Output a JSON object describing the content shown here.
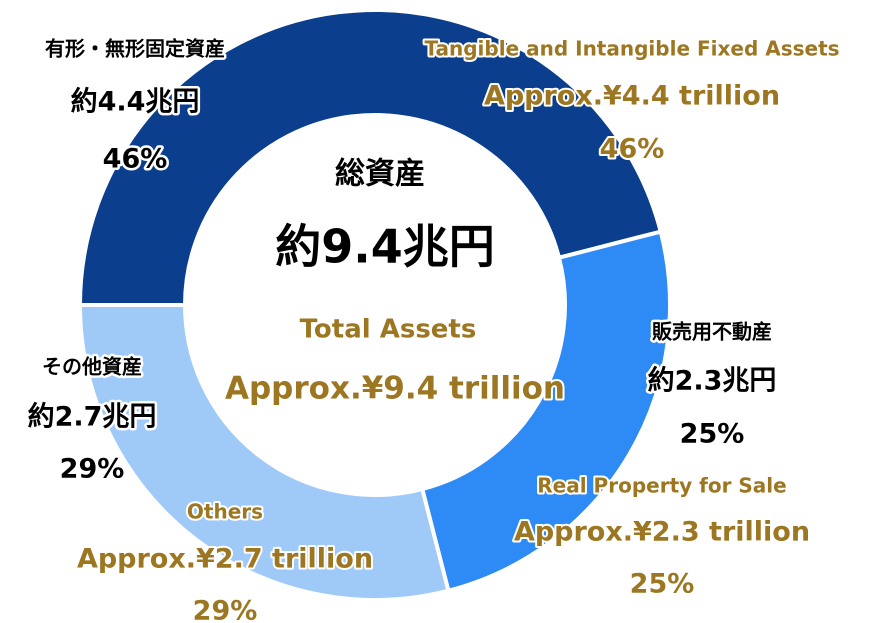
{
  "chart_data": {
    "type": "donut",
    "center_title_ja": "総資産",
    "center_amount_ja": "約9.4兆円",
    "center_title_en": "Total Assets",
    "center_amount_en": "Approx.¥9.4 trillion",
    "categories": [
      "有形・無形固定資産",
      "販売用不動産",
      "その他資産"
    ],
    "categories_en": [
      "Tangible and Intangible Fixed Assets",
      "Real Property for Sale",
      "Others"
    ],
    "amount_labels_ja": [
      "約4.4兆円",
      "約2.3兆円",
      "約2.7兆円"
    ],
    "amount_labels_en": [
      "Approx.¥4.4 trillion",
      "Approx.¥2.3 trillion",
      "Approx.¥2.7 trillion"
    ],
    "values": [
      46,
      25,
      29
    ],
    "value_labels": [
      "46%",
      "25%",
      "29%"
    ],
    "colors": [
      "#0b3f8e",
      "#2e8af4",
      "#9fc9f7"
    ]
  }
}
